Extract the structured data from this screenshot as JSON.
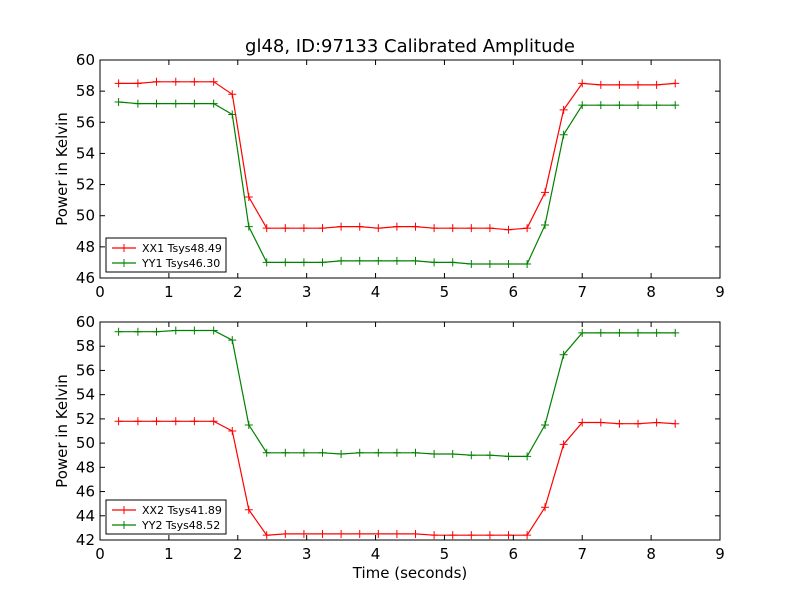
{
  "chart_data": [
    {
      "type": "line",
      "title": "gl48, ID:97133 Calibrated Amplitude",
      "xlabel": "",
      "ylabel": "Power in Kelvin",
      "xlim": [
        0,
        9
      ],
      "ylim": [
        46,
        60
      ],
      "xticks": [
        0,
        1,
        2,
        3,
        4,
        5,
        6,
        7,
        8,
        9
      ],
      "yticks": [
        46,
        48,
        50,
        52,
        54,
        56,
        58,
        60
      ],
      "legend": "lower-left",
      "x": [
        0.27,
        0.55,
        0.82,
        1.1,
        1.37,
        1.65,
        1.92,
        2.16,
        2.42,
        2.69,
        2.96,
        3.23,
        3.5,
        3.77,
        4.04,
        4.31,
        4.58,
        4.85,
        5.12,
        5.39,
        5.66,
        5.93,
        6.2,
        6.46,
        6.73,
        7.0,
        7.27,
        7.54,
        7.81,
        8.08,
        8.35
      ],
      "series": [
        {
          "name": "XX1 Tsys48.49",
          "color": "#ff0000",
          "values": [
            58.5,
            58.5,
            58.6,
            58.6,
            58.6,
            58.6,
            57.8,
            51.2,
            49.2,
            49.2,
            49.2,
            49.2,
            49.3,
            49.3,
            49.2,
            49.3,
            49.3,
            49.2,
            49.2,
            49.2,
            49.2,
            49.1,
            49.2,
            51.5,
            56.8,
            58.5,
            58.4,
            58.4,
            58.4,
            58.4,
            58.5
          ]
        },
        {
          "name": "YY1 Tsys46.30",
          "color": "#008000",
          "values": [
            57.3,
            57.2,
            57.2,
            57.2,
            57.2,
            57.2,
            56.5,
            49.3,
            47.0,
            47.0,
            47.0,
            47.0,
            47.1,
            47.1,
            47.1,
            47.1,
            47.1,
            47.0,
            47.0,
            46.9,
            46.9,
            46.9,
            46.9,
            49.4,
            55.2,
            57.1,
            57.1,
            57.1,
            57.1,
            57.1,
            57.1
          ]
        }
      ]
    },
    {
      "type": "line",
      "title": "",
      "xlabel": "Time (seconds)",
      "ylabel": "Power in Kelvin",
      "xlim": [
        0,
        9
      ],
      "ylim": [
        42,
        60
      ],
      "xticks": [
        0,
        1,
        2,
        3,
        4,
        5,
        6,
        7,
        8,
        9
      ],
      "yticks": [
        42,
        44,
        46,
        48,
        50,
        52,
        54,
        56,
        58,
        60
      ],
      "legend": "lower-left",
      "x": [
        0.27,
        0.55,
        0.82,
        1.1,
        1.37,
        1.65,
        1.92,
        2.16,
        2.42,
        2.69,
        2.96,
        3.23,
        3.5,
        3.77,
        4.04,
        4.31,
        4.58,
        4.85,
        5.12,
        5.39,
        5.66,
        5.93,
        6.2,
        6.46,
        6.73,
        7.0,
        7.27,
        7.54,
        7.81,
        8.08,
        8.35
      ],
      "series": [
        {
          "name": "XX2 Tsys41.89",
          "color": "#ff0000",
          "values": [
            51.8,
            51.8,
            51.8,
            51.8,
            51.8,
            51.8,
            51.0,
            44.5,
            42.4,
            42.5,
            42.5,
            42.5,
            42.5,
            42.5,
            42.5,
            42.5,
            42.5,
            42.4,
            42.4,
            42.4,
            42.4,
            42.4,
            42.4,
            44.7,
            49.9,
            51.7,
            51.7,
            51.6,
            51.6,
            51.7,
            51.6
          ]
        },
        {
          "name": "YY2 Tsys48.52",
          "color": "#008000",
          "values": [
            59.2,
            59.2,
            59.2,
            59.3,
            59.3,
            59.3,
            58.5,
            51.5,
            49.2,
            49.2,
            49.2,
            49.2,
            49.1,
            49.2,
            49.2,
            49.2,
            49.2,
            49.1,
            49.1,
            49.0,
            49.0,
            48.9,
            48.9,
            51.5,
            57.3,
            59.1,
            59.1,
            59.1,
            59.1,
            59.1,
            59.1
          ]
        }
      ]
    }
  ]
}
